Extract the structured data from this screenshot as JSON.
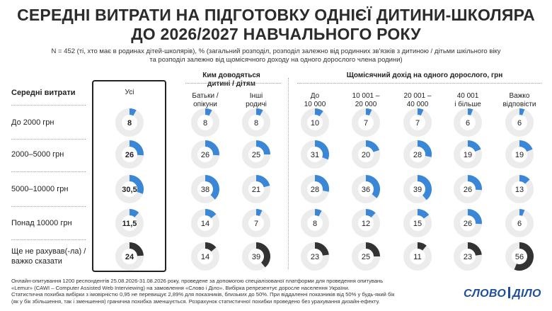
{
  "title_line1": "СЕРЕДНІ ВИТРАТИ НА ПІДГОТОВКУ ОДНІЄЇ ДИТИНИ-ШКОЛЯРА",
  "title_line2": "ДО 2026/2027 НАВЧАЛЬНОГО РОКУ",
  "subtitle_line1": "N = 452 (ті, хто має в родинах дітей-школярів), % (загальний розподіл, розподіл залежно від родинних зв'язків з дитиною / дітьми шкільного віку",
  "subtitle_line2": "та розподіл залежно від щомісячного доходу на одного дорослого члена родини)",
  "group_headers": {
    "relation": [
      "Ким доводяться",
      "дитині / дітям"
    ],
    "income": "Щомісячний дохід  на одного дорослого, грн"
  },
  "row_header": "Середні витрати",
  "columns": [
    {
      "label": [
        "Усі"
      ]
    },
    {
      "label": [
        "Батьки /",
        "опікуни"
      ]
    },
    {
      "label": [
        "Інші",
        "родичі"
      ]
    },
    {
      "label": [
        "До",
        "10 000"
      ]
    },
    {
      "label": [
        "10 001 –",
        "20 000"
      ]
    },
    {
      "label": [
        "20 001 –",
        "40 000"
      ]
    },
    {
      "label": [
        "40 001",
        "і більше"
      ]
    },
    {
      "label": [
        "Важко",
        "відповісти"
      ]
    }
  ],
  "rows": [
    {
      "label": [
        "До 2000 грн"
      ]
    },
    {
      "label": [
        "2000–5000 грн"
      ]
    },
    {
      "label": [
        "5000–10000 грн"
      ]
    },
    {
      "label": [
        "Понад 10000 грн"
      ]
    },
    {
      "label": [
        "Ще не рахував(-ла) /",
        "важко сказати"
      ]
    }
  ],
  "colors": {
    "accent": "#3a87d8",
    "undecided": "#333333",
    "track": "#ececec"
  },
  "chart_data": {
    "type": "table",
    "unit": "%",
    "columns": [
      "Усі",
      "Батьки / опікуни",
      "Інші родичі",
      "До 10 000",
      "10 001 – 20 000",
      "20 001 – 40 000",
      "40 001 і більше",
      "Важко відповісти"
    ],
    "rows": [
      "До 2000 грн",
      "2000–5000 грн",
      "5000–10000 грн",
      "Понад 10000 грн",
      "Ще не рахував(-ла) / важко сказати"
    ],
    "values": [
      [
        8,
        8,
        8,
        10,
        7,
        7,
        6,
        6
      ],
      [
        26,
        26,
        25,
        31,
        20,
        28,
        19,
        19
      ],
      [
        30.5,
        38,
        21,
        28,
        36,
        39,
        26,
        13
      ],
      [
        11.5,
        14,
        7,
        8,
        12,
        15,
        26,
        6
      ],
      [
        24,
        14,
        39,
        23,
        25,
        11,
        23,
        56
      ]
    ],
    "labels": [
      [
        "8",
        "8",
        "8",
        "10",
        "7",
        "7",
        "6",
        "6"
      ],
      [
        "26",
        "26",
        "25",
        "31",
        "20",
        "28",
        "19",
        "19"
      ],
      [
        "30,5",
        "38",
        "21",
        "28",
        "36",
        "39",
        "26",
        "13"
      ],
      [
        "11,5",
        "14",
        "7",
        "8",
        "12",
        "15",
        "26",
        "6"
      ],
      [
        "24",
        "14",
        "39",
        "23",
        "25",
        "11",
        "23",
        "56"
      ]
    ]
  },
  "footer_lines": [
    "Онлайн-опитування 1200 респондентів 25.08.2026-31.08.2026 року, проведене за допомогою спеціалізованої платформи для проведення опитувань",
    "«Lemur» (CAWI – Computer Assisted Web Interviewing) на замовлення «Слово і Діло». Вибірка репрезентує доросле населення України.",
    "Статистична похибка вибірки з імовірністю 0,95 не перевищує 2,89% для показників, близьких до 50%. При віддаленні показників від 50% у будь-який бік",
    "(як у бік збільшення, так і зменшення) гранична похибка зменшується. Розрахунок статистичної похибки проведено без урахування дизайн-ефекту."
  ],
  "logo": {
    "left": "СЛОВО",
    "right": "ДІЛО"
  }
}
